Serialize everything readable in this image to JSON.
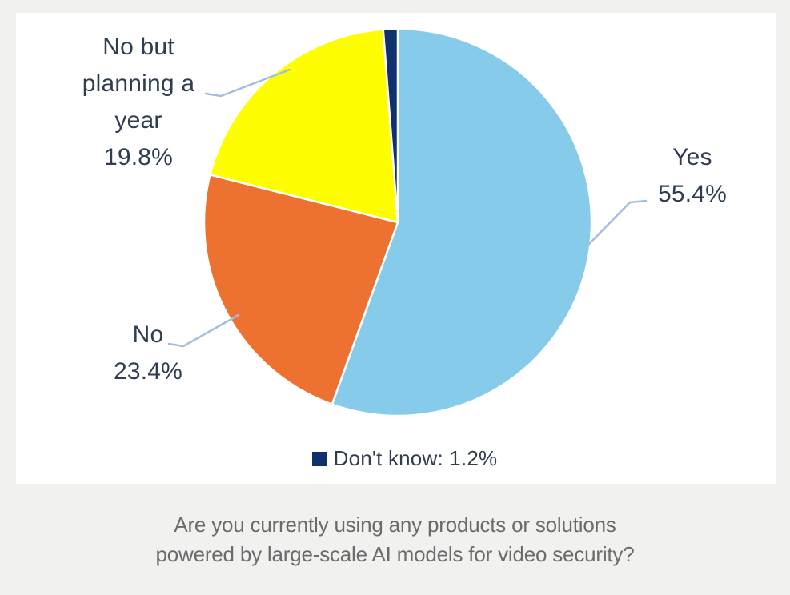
{
  "chart_data": {
    "type": "pie",
    "title": "Are you currently using any products or solutions powered by large-scale AI models for video security?",
    "direction": "clockwise",
    "start_angle_deg": 0,
    "legend_position": "bottom",
    "slices": [
      {
        "label": "Yes",
        "value": 55.4,
        "color": "#87cbeb"
      },
      {
        "label": "No",
        "value": 23.4,
        "color": "#ed7130"
      },
      {
        "label": "No but planning a year",
        "value": 19.8,
        "color": "#fefe00"
      },
      {
        "label": "Don't know",
        "value": 1.2,
        "color": "#10306e"
      }
    ]
  },
  "callouts": {
    "no_but_planning": {
      "lines": [
        "No but",
        "planning a",
        "year"
      ],
      "value_label": "19.8%"
    },
    "yes": {
      "label": "Yes",
      "value_label": "55.4%"
    },
    "no": {
      "label": "No",
      "value_label": "23.4%"
    }
  },
  "legend": {
    "dont_know_label": "Don't know: 1.2%"
  },
  "caption": {
    "lines": [
      "Are you currently using any products or solutions",
      "powered by large-scale AI models for video security?"
    ]
  },
  "colors": {
    "background": "#f1f1f0",
    "panel": "#ffffff",
    "label_text": "#2f3d4f",
    "caption_text": "#6b6b6b",
    "leader_line": "#a3bedd"
  }
}
